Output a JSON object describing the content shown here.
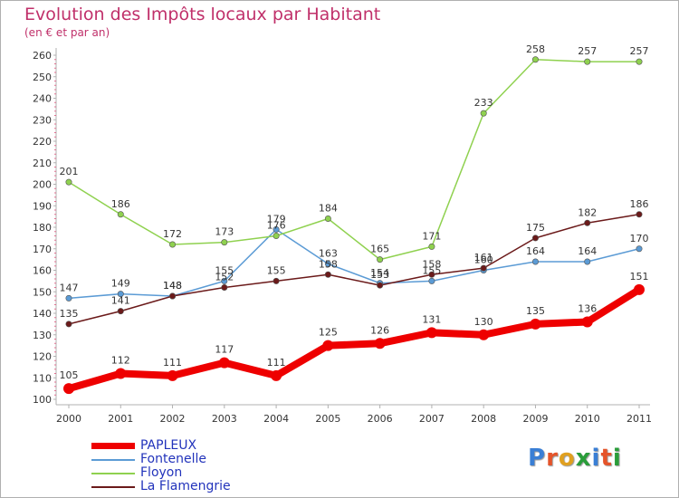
{
  "title": "Evolution des Impôts locaux par Habitant",
  "subtitle": "(en € et par an)",
  "logo": {
    "text": "Proxiti",
    "letter_colors": [
      "#3a7fd5",
      "#e5542a",
      "#e0a020",
      "#2a9d3a",
      "#3a7fd5",
      "#e5542a",
      "#2a9d3a"
    ]
  },
  "chart_data": {
    "type": "line",
    "x": [
      "2000",
      "2001",
      "2002",
      "2003",
      "2004",
      "2005",
      "2006",
      "2007",
      "2008",
      "2009",
      "2010",
      "2011"
    ],
    "ylim": [
      100,
      260
    ],
    "yticks": [
      100,
      110,
      120,
      130,
      140,
      150,
      160,
      170,
      180,
      190,
      200,
      210,
      220,
      230,
      240,
      250,
      260
    ],
    "grid": false,
    "legend_position": "bottom-left",
    "series": [
      {
        "name": "PAPLEUX",
        "color": "#ee0000",
        "emphasis": true,
        "values": [
          105,
          112,
          111,
          117,
          111,
          125,
          126,
          131,
          130,
          135,
          136,
          151
        ]
      },
      {
        "name": "Fontenelle",
        "color": "#5b9bd5",
        "emphasis": false,
        "values": [
          147,
          149,
          148,
          155,
          179,
          163,
          154,
          155,
          160,
          164,
          164,
          170
        ]
      },
      {
        "name": "Floyon",
        "color": "#8fd14f",
        "emphasis": false,
        "values": [
          201,
          186,
          172,
          173,
          176,
          184,
          165,
          171,
          233,
          258,
          257,
          257
        ]
      },
      {
        "name": "La Flamengrie",
        "color": "#6b1a1a",
        "emphasis": false,
        "values": [
          135,
          141,
          148,
          152,
          155,
          158,
          153,
          158,
          161,
          175,
          182,
          186
        ]
      }
    ]
  }
}
